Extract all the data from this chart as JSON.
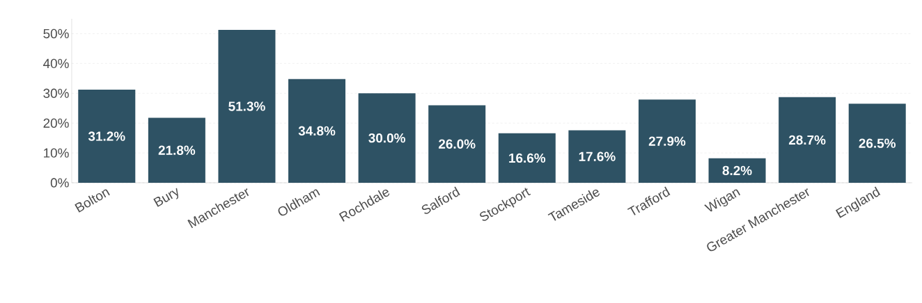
{
  "chart_data": {
    "type": "bar",
    "categories": [
      "Bolton",
      "Bury",
      "Manchester",
      "Oldham",
      "Rochdale",
      "Salford",
      "Stockport",
      "Tameside",
      "Trafford",
      "Wigan",
      "Greater Manchester",
      "England"
    ],
    "values": [
      31.2,
      21.8,
      51.3,
      34.8,
      30.0,
      26.0,
      16.6,
      17.6,
      27.9,
      8.2,
      28.7,
      26.5
    ],
    "value_labels": [
      "31.2%",
      "21.8%",
      "51.3%",
      "34.8%",
      "30.0%",
      "26.0%",
      "16.6%",
      "17.6%",
      "27.9%",
      "8.2%",
      "28.7%",
      "26.5%"
    ],
    "color": "#2e5264",
    "ylim": [
      0,
      55
    ],
    "yticks": [
      {
        "value": 0,
        "label": "0%"
      },
      {
        "value": 10,
        "label": "10%"
      },
      {
        "value": 20,
        "label": "20%"
      },
      {
        "value": 30,
        "label": "30%"
      },
      {
        "value": 40,
        "label": "40%"
      },
      {
        "value": 50,
        "label": "50%"
      }
    ],
    "grid": "y"
  }
}
